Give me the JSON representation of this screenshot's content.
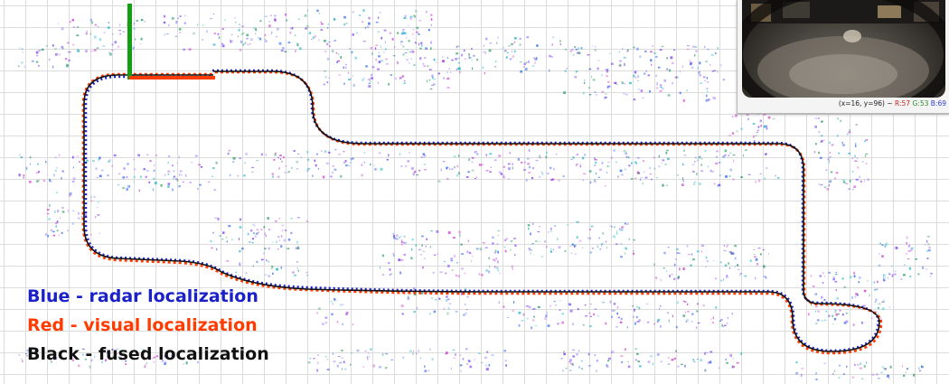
{
  "legend": {
    "blue": "Blue - radar localization",
    "red": "Red  - visual localization",
    "black": "Black - fused localization"
  },
  "camera_status": {
    "coords": "(x=16, y=96) ~",
    "r": "R:57",
    "g": "G:53",
    "b": "B:69"
  },
  "colors": {
    "radar": "#1a21c8",
    "visual": "#ff3b00",
    "fused": "#111111",
    "axis_x": "#ff3b00",
    "axis_y": "#12a012",
    "point_cloud": [
      "#7b3ff2",
      "#3a6cf0",
      "#20b5c8",
      "#cc44cc",
      "#2e9c6a",
      "#9a6cff"
    ]
  }
}
